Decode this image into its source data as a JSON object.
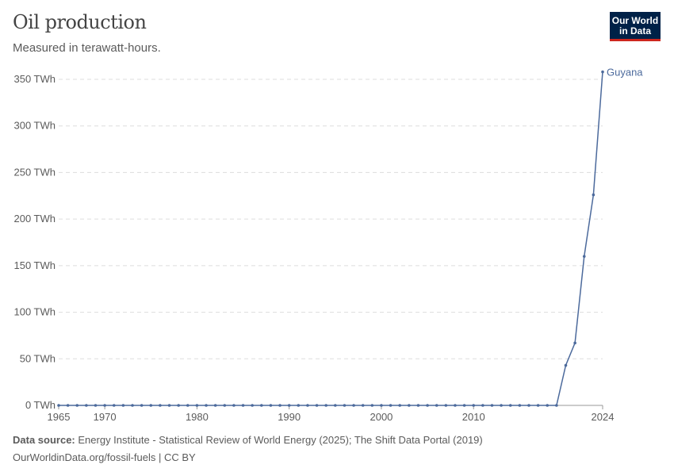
{
  "header": {
    "title": "Oil production",
    "subtitle": "Measured in terawatt-hours."
  },
  "logo": {
    "line1": "Our World",
    "line2": "in Data"
  },
  "footer": {
    "source_label": "Data source:",
    "source_text": "Energy Institute - Statistical Review of World Energy (2025); The Shift Data Portal (2019)",
    "link": "OurWorldinData.org/fossil-fuels | CC BY"
  },
  "chart_data": {
    "type": "line",
    "title": "Oil production",
    "subtitle": "Measured in terawatt-hours.",
    "xlim": [
      1965,
      2024
    ],
    "ylim": [
      0,
      350
    ],
    "x_ticks": [
      1965,
      1970,
      1980,
      1990,
      2000,
      2010,
      2024
    ],
    "y_ticks": [
      {
        "v": 0,
        "label": "0 TWh"
      },
      {
        "v": 50,
        "label": "50 TWh"
      },
      {
        "v": 100,
        "label": "100 TWh"
      },
      {
        "v": 150,
        "label": "150 TWh"
      },
      {
        "v": 200,
        "label": "200 TWh"
      },
      {
        "v": 250,
        "label": "250 TWh"
      },
      {
        "v": 300,
        "label": "300 TWh"
      },
      {
        "v": 350,
        "label": "350 TWh"
      }
    ],
    "grid": "horizontal dashed",
    "series": [
      {
        "name": "Guyana",
        "color": "#4c6a9c",
        "zero_from": 1965,
        "zero_to": 2019,
        "points": [
          [
            2020,
            43
          ],
          [
            2021,
            67
          ],
          [
            2022,
            160
          ],
          [
            2023,
            226
          ],
          [
            2024,
            358
          ]
        ]
      }
    ]
  }
}
